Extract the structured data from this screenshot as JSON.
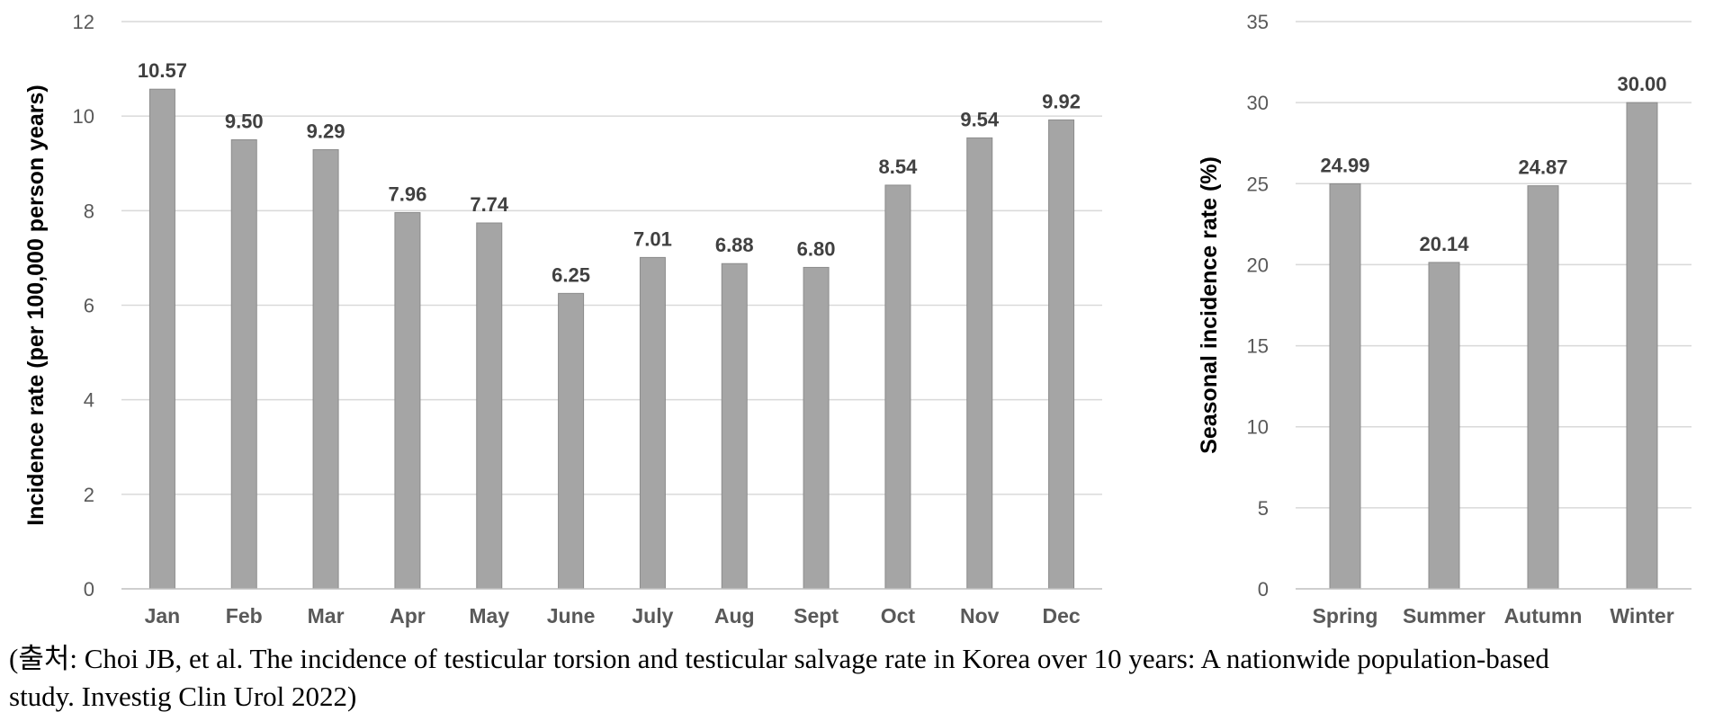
{
  "chart_data": [
    {
      "type": "bar",
      "title": "",
      "xlabel": "",
      "ylabel": "Incidence rate (per 100,000 person years)",
      "ylim": [
        0,
        12
      ],
      "yticks": [
        0,
        2,
        4,
        6,
        8,
        10,
        12
      ],
      "grid": true,
      "categories": [
        "Jan",
        "Feb",
        "Mar",
        "Apr",
        "May",
        "June",
        "July",
        "Aug",
        "Sept",
        "Oct",
        "Nov",
        "Dec"
      ],
      "values": [
        10.57,
        9.5,
        9.29,
        7.96,
        7.74,
        6.25,
        7.01,
        6.88,
        6.8,
        8.54,
        9.54,
        9.92
      ],
      "value_labels": [
        "10.57",
        "9.50",
        "9.29",
        "7.96",
        "7.74",
        "6.25",
        "7.01",
        "6.88",
        "6.80",
        "8.54",
        "9.54",
        "9.92"
      ],
      "bar_color": "#a5a5a5"
    },
    {
      "type": "bar",
      "title": "",
      "xlabel": "",
      "ylabel": "Seasonal incidence rate (%)",
      "ylim": [
        0,
        35
      ],
      "yticks": [
        0,
        5,
        10,
        15,
        20,
        25,
        30,
        35
      ],
      "grid": true,
      "categories": [
        "Spring",
        "Summer",
        "Autumn",
        "Winter"
      ],
      "values": [
        24.99,
        20.14,
        24.87,
        30.0
      ],
      "value_labels": [
        "24.99",
        "20.14",
        "24.87",
        "30.00"
      ],
      "bar_color": "#a5a5a5"
    }
  ],
  "caption": {
    "line1": "(출처: Choi JB, et al. The incidence of testicular torsion and testicular salvage rate in Korea over 10 years: A nationwide population-based",
    "line2": "study. Investig Clin Urol 2022)"
  }
}
